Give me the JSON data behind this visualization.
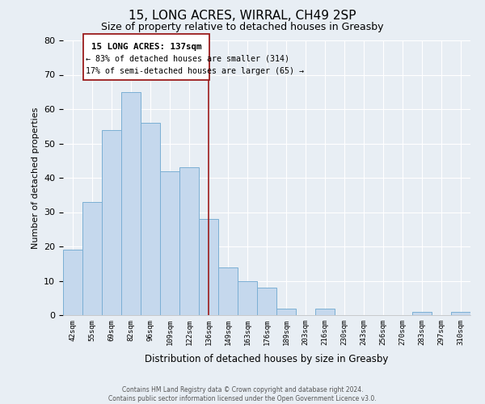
{
  "title": "15, LONG ACRES, WIRRAL, CH49 2SP",
  "subtitle": "Size of property relative to detached houses in Greasby",
  "xlabel": "Distribution of detached houses by size in Greasby",
  "ylabel": "Number of detached properties",
  "bin_labels": [
    "42sqm",
    "55sqm",
    "69sqm",
    "82sqm",
    "96sqm",
    "109sqm",
    "122sqm",
    "136sqm",
    "149sqm",
    "163sqm",
    "176sqm",
    "189sqm",
    "203sqm",
    "216sqm",
    "230sqm",
    "243sqm",
    "256sqm",
    "270sqm",
    "283sqm",
    "297sqm",
    "310sqm"
  ],
  "bar_values": [
    19,
    33,
    54,
    65,
    56,
    42,
    43,
    28,
    14,
    10,
    8,
    2,
    0,
    2,
    0,
    0,
    0,
    0,
    1,
    0,
    1
  ],
  "bar_color": "#c5d8ed",
  "bar_edge_color": "#7bafd4",
  "highlight_line_color": "#9b1b1b",
  "annotation_title": "15 LONG ACRES: 137sqm",
  "annotation_line1": "← 83% of detached houses are smaller (314)",
  "annotation_line2": "17% of semi-detached houses are larger (65) →",
  "annotation_box_color": "#ffffff",
  "annotation_box_edge": "#9b1b1b",
  "footer_line1": "Contains HM Land Registry data © Crown copyright and database right 2024.",
  "footer_line2": "Contains public sector information licensed under the Open Government Licence v3.0.",
  "ylim": [
    0,
    80
  ],
  "yticks": [
    0,
    10,
    20,
    30,
    40,
    50,
    60,
    70,
    80
  ],
  "background_color": "#e8eef4",
  "plot_bg_color": "#e8eef4",
  "grid_color": "#ffffff",
  "title_fontsize": 11,
  "subtitle_fontsize": 9
}
